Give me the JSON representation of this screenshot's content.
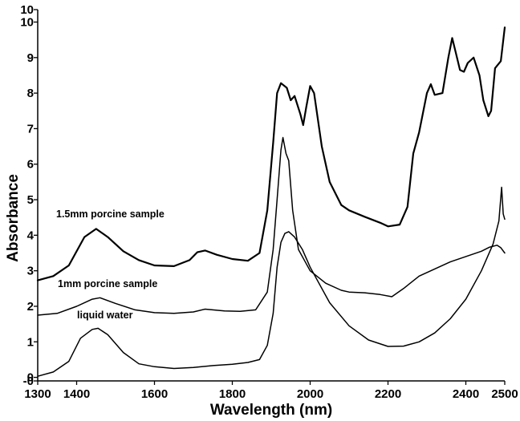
{
  "chart_data": {
    "type": "line",
    "title": "",
    "xlabel": "Wavelength (nm)",
    "ylabel": "Absorbance",
    "xlim": [
      1300,
      2500
    ],
    "ylim": [
      -0.1,
      10.35
    ],
    "grid": false,
    "x_ticks": [
      "1300",
      "1400",
      "1600",
      "1800",
      "2000",
      "2200",
      "2400",
      "2500"
    ],
    "y_ticks": [
      "-0",
      "0",
      "1",
      "2",
      "3",
      "4",
      "5",
      "6",
      "7",
      "8",
      "9",
      "10",
      "10"
    ],
    "series": [
      {
        "name": "1.5mm porcine sample",
        "stroke_width": 2.2,
        "points": [
          [
            1300,
            2.73
          ],
          [
            1340,
            2.85
          ],
          [
            1380,
            3.15
          ],
          [
            1420,
            3.95
          ],
          [
            1450,
            4.18
          ],
          [
            1480,
            3.95
          ],
          [
            1520,
            3.55
          ],
          [
            1560,
            3.3
          ],
          [
            1600,
            3.15
          ],
          [
            1650,
            3.13
          ],
          [
            1690,
            3.3
          ],
          [
            1710,
            3.52
          ],
          [
            1730,
            3.57
          ],
          [
            1760,
            3.45
          ],
          [
            1800,
            3.33
          ],
          [
            1840,
            3.28
          ],
          [
            1870,
            3.5
          ],
          [
            1890,
            4.7
          ],
          [
            1905,
            6.6
          ],
          [
            1915,
            8.0
          ],
          [
            1925,
            8.28
          ],
          [
            1940,
            8.15
          ],
          [
            1950,
            7.8
          ],
          [
            1960,
            7.92
          ],
          [
            1975,
            7.4
          ],
          [
            1982,
            7.1
          ],
          [
            1990,
            7.6
          ],
          [
            2000,
            8.2
          ],
          [
            2010,
            8.0
          ],
          [
            2030,
            6.5
          ],
          [
            2050,
            5.5
          ],
          [
            2080,
            4.85
          ],
          [
            2100,
            4.7
          ],
          [
            2140,
            4.52
          ],
          [
            2180,
            4.35
          ],
          [
            2200,
            4.25
          ],
          [
            2230,
            4.3
          ],
          [
            2250,
            4.8
          ],
          [
            2265,
            6.3
          ],
          [
            2280,
            6.9
          ],
          [
            2300,
            8.0
          ],
          [
            2310,
            8.25
          ],
          [
            2320,
            7.95
          ],
          [
            2340,
            8.0
          ],
          [
            2355,
            9.0
          ],
          [
            2365,
            9.55
          ],
          [
            2375,
            9.1
          ],
          [
            2385,
            8.65
          ],
          [
            2395,
            8.6
          ],
          [
            2405,
            8.85
          ],
          [
            2420,
            9.0
          ],
          [
            2435,
            8.5
          ],
          [
            2445,
            7.8
          ],
          [
            2458,
            7.35
          ],
          [
            2465,
            7.5
          ],
          [
            2475,
            8.7
          ],
          [
            2490,
            8.9
          ],
          [
            2500,
            9.85
          ]
        ]
      },
      {
        "name": "1mm porcine sample",
        "stroke_width": 1.5,
        "points": [
          [
            1300,
            1.75
          ],
          [
            1350,
            1.8
          ],
          [
            1400,
            2.0
          ],
          [
            1440,
            2.2
          ],
          [
            1460,
            2.24
          ],
          [
            1500,
            2.08
          ],
          [
            1550,
            1.9
          ],
          [
            1600,
            1.82
          ],
          [
            1650,
            1.8
          ],
          [
            1700,
            1.84
          ],
          [
            1730,
            1.92
          ],
          [
            1780,
            1.87
          ],
          [
            1820,
            1.86
          ],
          [
            1860,
            1.9
          ],
          [
            1890,
            2.4
          ],
          [
            1905,
            3.6
          ],
          [
            1915,
            5.0
          ],
          [
            1925,
            6.4
          ],
          [
            1930,
            6.75
          ],
          [
            1938,
            6.3
          ],
          [
            1945,
            6.1
          ],
          [
            1955,
            4.7
          ],
          [
            1970,
            3.6
          ],
          [
            2000,
            3.0
          ],
          [
            2040,
            2.65
          ],
          [
            2080,
            2.45
          ],
          [
            2100,
            2.4
          ],
          [
            2140,
            2.38
          ],
          [
            2180,
            2.33
          ],
          [
            2210,
            2.27
          ],
          [
            2240,
            2.5
          ],
          [
            2280,
            2.85
          ],
          [
            2320,
            3.05
          ],
          [
            2360,
            3.25
          ],
          [
            2400,
            3.4
          ],
          [
            2440,
            3.55
          ],
          [
            2460,
            3.66
          ],
          [
            2480,
            3.72
          ],
          [
            2490,
            3.65
          ],
          [
            2500,
            3.5
          ]
        ]
      },
      {
        "name": "liquid water",
        "stroke_width": 1.5,
        "points": [
          [
            1300,
            0.03
          ],
          [
            1340,
            0.15
          ],
          [
            1380,
            0.45
          ],
          [
            1410,
            1.1
          ],
          [
            1440,
            1.35
          ],
          [
            1455,
            1.38
          ],
          [
            1480,
            1.2
          ],
          [
            1520,
            0.7
          ],
          [
            1560,
            0.38
          ],
          [
            1600,
            0.3
          ],
          [
            1650,
            0.25
          ],
          [
            1700,
            0.28
          ],
          [
            1750,
            0.33
          ],
          [
            1800,
            0.37
          ],
          [
            1840,
            0.42
          ],
          [
            1870,
            0.5
          ],
          [
            1890,
            0.9
          ],
          [
            1905,
            1.8
          ],
          [
            1915,
            3.1
          ],
          [
            1925,
            3.8
          ],
          [
            1935,
            4.05
          ],
          [
            1945,
            4.1
          ],
          [
            1960,
            3.95
          ],
          [
            1980,
            3.6
          ],
          [
            2000,
            3.1
          ],
          [
            2050,
            2.1
          ],
          [
            2100,
            1.45
          ],
          [
            2150,
            1.05
          ],
          [
            2200,
            0.87
          ],
          [
            2240,
            0.88
          ],
          [
            2280,
            1.0
          ],
          [
            2320,
            1.25
          ],
          [
            2360,
            1.65
          ],
          [
            2400,
            2.2
          ],
          [
            2440,
            3.0
          ],
          [
            2470,
            3.75
          ],
          [
            2485,
            4.4
          ],
          [
            2492,
            5.35
          ],
          [
            2496,
            4.6
          ],
          [
            2500,
            4.45
          ]
        ]
      }
    ]
  }
}
